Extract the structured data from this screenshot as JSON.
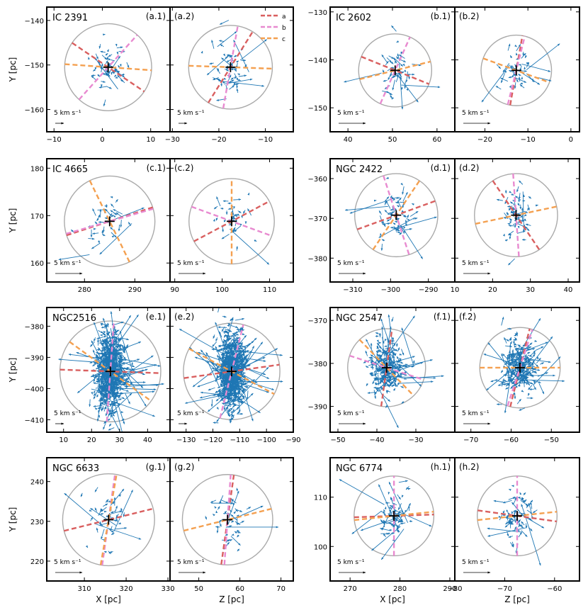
{
  "chart_data": {
    "type": "scatter",
    "ylabel": "Y [pc]",
    "xlabel_left": "X [pc]",
    "xlabel_right": "Z [pc]",
    "scale_label": "5 km s⁻¹",
    "legend": [
      {
        "label": "a",
        "color": "#d95f5f"
      },
      {
        "label": "b",
        "color": "#e88ad0"
      },
      {
        "label": "c",
        "color": "#f4a050"
      }
    ],
    "colors": {
      "arrows": "#1f77b4",
      "circle": "#aaaaaa",
      "frame": "#000000"
    },
    "clusters": [
      {
        "name": "IC 2391",
        "labels": [
          "(a.1)",
          "(a.2)"
        ],
        "y_ticks": [
          -140,
          -150,
          -160
        ],
        "yr": [
          -165,
          -137
        ],
        "x1_ticks": [
          -10,
          0,
          10
        ],
        "x1r": [
          -11.5,
          14
        ],
        "x2_ticks": [
          -30,
          -20,
          -10
        ],
        "x2r": [
          -30.5,
          -4
        ],
        "center": {
          "x": 1.2,
          "y": -150.5,
          "z": -17.5
        },
        "radius": 9,
        "dirs1": {
          "a": -34,
          "b": 48,
          "c": -4
        },
        "dirs2": {
          "a": 58,
          "b": 80,
          "c": -2
        }
      },
      {
        "name": "IC 2602",
        "labels": [
          "(b.1)",
          "(b.2)"
        ],
        "y_ticks": [
          -130,
          -140,
          -150
        ],
        "yr": [
          -155,
          -129
        ],
        "x1_ticks": [
          40,
          50,
          60
        ],
        "x1r": [
          36,
          64
        ],
        "x2_ticks": [
          -20,
          -10,
          0
        ],
        "x2r": [
          -27,
          2
        ],
        "center": {
          "x": 50.6,
          "y": -142.2,
          "z": -12.7
        },
        "radius": 8.2,
        "dirs1": {
          "a": -22,
          "b": 66,
          "c": 14
        },
        "dirs2": {
          "a": 80,
          "b": 76,
          "c": -20
        }
      },
      {
        "name": "IC 4665",
        "labels": [
          "(c.1)",
          "(c.2)"
        ],
        "y_ticks": [
          180,
          170,
          160
        ],
        "yr": [
          156,
          182
        ],
        "x1_ticks": [
          280,
          290
        ],
        "x1r": [
          272.5,
          297
        ],
        "x2_ticks": [
          90,
          100,
          110
        ],
        "x2r": [
          89,
          115
        ],
        "center": {
          "x": 285,
          "y": 168.8,
          "z": 102
        },
        "radius": 9,
        "dirs1": {
          "a": 18,
          "b": 16,
          "c": -64
        },
        "dirs2": {
          "a": 28,
          "b": -20,
          "c": 90
        }
      },
      {
        "name": "NGC 2422",
        "labels": [
          "(d.1)",
          "(d.2)"
        ],
        "y_ticks": [
          -360,
          -370,
          -380
        ],
        "yr": [
          -386,
          -355
        ],
        "x1_ticks": [
          -310,
          -300,
          -290
        ],
        "x1r": [
          -316,
          -283
        ],
        "x2_ticks": [
          10,
          20,
          30,
          40
        ],
        "x2r": [
          10,
          43
        ],
        "center": {
          "x": -298.5,
          "y": -369.2,
          "z": 26.2
        },
        "radius": 11,
        "dirs1": {
          "a": 20,
          "b": -72,
          "c": 56
        },
        "dirs2": {
          "a": -56,
          "b": -86,
          "c": 12
        }
      },
      {
        "name": "NGC2516",
        "labels": [
          "(e.1)",
          "(e.2)"
        ],
        "y_ticks": [
          -380,
          -390,
          -400,
          -410
        ],
        "yr": [
          -414,
          -374
        ],
        "x1_ticks": [
          10,
          20,
          30,
          40
        ],
        "x1r": [
          4,
          48
        ],
        "x2_ticks": [
          -130,
          -120,
          -110,
          -100,
          -90
        ],
        "x2r": [
          -136,
          -90
        ],
        "center": {
          "x": 26.7,
          "y": -394.5,
          "z": -113
        },
        "radius": 18,
        "dirs1": {
          "a": -2,
          "b": 86,
          "c": -36
        },
        "dirs2": {
          "a": 8,
          "b": 76,
          "c": -28
        }
      },
      {
        "name": "NGC 2547",
        "labels": [
          "(f.1)",
          "(f.2)"
        ],
        "y_ticks": [
          -370,
          -380,
          -390
        ],
        "yr": [
          -396,
          -367
        ],
        "x1_ticks": [
          -50,
          -40,
          -30
        ],
        "x1r": [
          -52,
          -20
        ],
        "x2_ticks": [
          -70,
          -60,
          -50
        ],
        "x2r": [
          -74,
          -43
        ],
        "center": {
          "x": -37.5,
          "y": -381,
          "z": -57.8
        },
        "radius": 10,
        "dirs1": {
          "a": 82,
          "b": -18,
          "c": -46
        },
        "dirs2": {
          "a": 76,
          "b": 72,
          "c": 0
        }
      },
      {
        "name": "NGC 6633",
        "labels": [
          "(g.1)",
          "(g.2)"
        ],
        "y_ticks": [
          240,
          230,
          220
        ],
        "yr": [
          215,
          246
        ],
        "x1_ticks": [
          310,
          320,
          330
        ],
        "x1r": [
          301,
          330.5
        ],
        "x2_ticks": [
          50,
          60,
          70
        ],
        "x2r": [
          43,
          73
        ],
        "center": {
          "x": 315.8,
          "y": 230.4,
          "z": 57
        },
        "radius": 11,
        "dirs1": {
          "a": 14,
          "b": 82,
          "c": 80
        },
        "dirs2": {
          "a": 82,
          "b": 86,
          "c": 14
        }
      },
      {
        "name": "NGC 6774",
        "labels": [
          "(h.1)",
          "(h.2)"
        ],
        "y_ticks": [
          110,
          100
        ],
        "yr": [
          93,
          118
        ],
        "x1_ticks": [
          270,
          280,
          290
        ],
        "x1r": [
          266,
          291
        ],
        "x2_ticks": [
          -80,
          -70,
          -60
        ],
        "x2r": [
          -80,
          -55
        ],
        "center": {
          "x": 278.8,
          "y": 106.2,
          "z": -67.5
        },
        "radius": 8,
        "dirs1": {
          "a": 2,
          "b": 90,
          "c": 6
        },
        "dirs2": {
          "a": -8,
          "b": 90,
          "c": 6
        }
      }
    ]
  }
}
